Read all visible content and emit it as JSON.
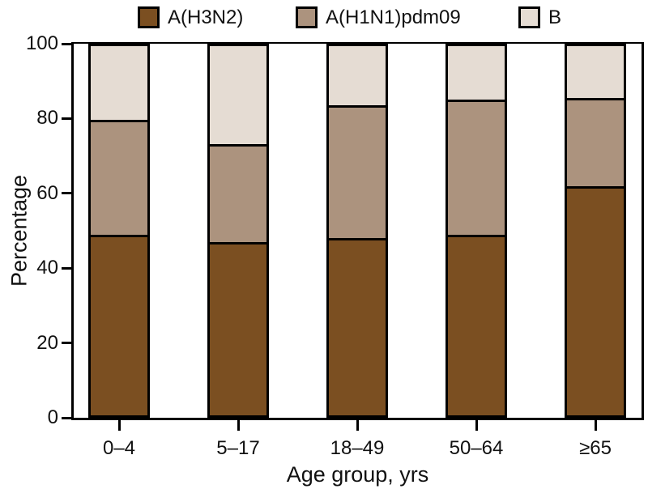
{
  "legend": {
    "items": [
      {
        "label": "A(H3N2)",
        "color": "#7B4F21",
        "swatch_icon": "legend-swatch-h3n2"
      },
      {
        "label": "A(H1N1)pdm09",
        "color": "#AC937E",
        "swatch_icon": "legend-swatch-h1n1"
      },
      {
        "label": "B",
        "color": "#E5DCD3",
        "swatch_icon": "legend-swatch-b"
      }
    ]
  },
  "chart_data": {
    "type": "bar",
    "stacked": true,
    "title": "",
    "xlabel": "Age group, yrs",
    "ylabel": "Percentage",
    "ylim": [
      0,
      100
    ],
    "yticks": [
      0,
      20,
      40,
      60,
      80,
      100
    ],
    "grid": false,
    "legend_position": "top",
    "outline_color": "#000000",
    "categories": [
      "0–4",
      "5–17",
      "18–49",
      "50–64",
      "≥65"
    ],
    "series": [
      {
        "name": "A(H3N2)",
        "color": "#7B4F21",
        "values": [
          49,
          47,
          48,
          49,
          62
        ]
      },
      {
        "name": "A(H1N1)pdm09",
        "color": "#AC937E",
        "values": [
          31,
          26.5,
          36,
          36.5,
          24
        ]
      },
      {
        "name": "B",
        "color": "#E5DCD3",
        "values": [
          20,
          26.5,
          16,
          14.5,
          14
        ]
      }
    ]
  }
}
